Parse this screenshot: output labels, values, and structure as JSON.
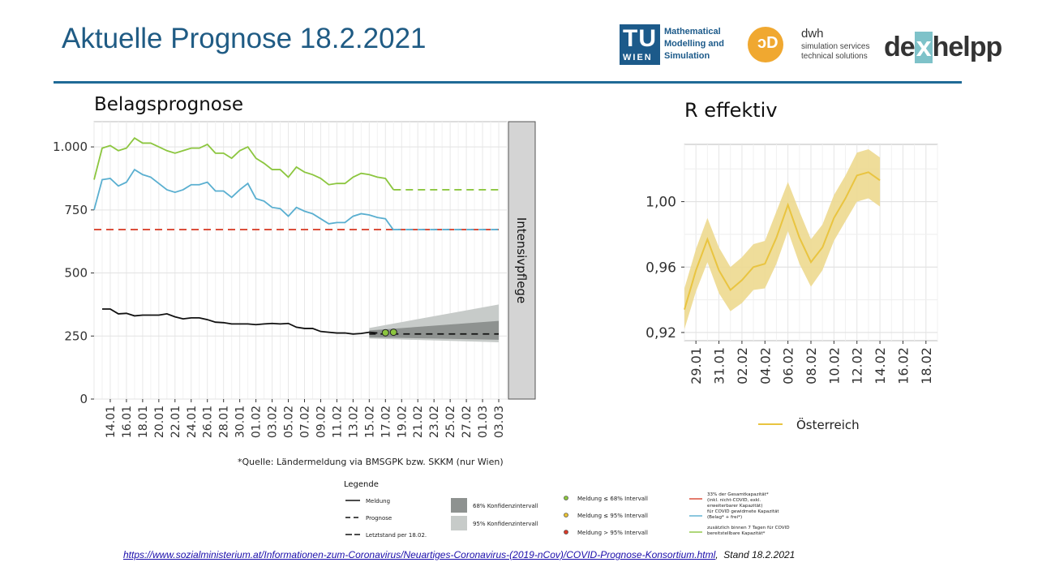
{
  "slide": {
    "title": "Aktuelle Prognose 18.2.2021",
    "source_url": "https://www.sozialministerium.at/Informationen-zum-Coronavirus/Neuartiges-Coronavirus-(2019-nCov)/COVID-Prognose-Konsortium.html",
    "source_stand": "Stand 18.2.2021"
  },
  "logos": {
    "tu_mark": "TU",
    "tu_wien": "WIEN",
    "tu_line1": "Mathematical",
    "tu_line2": "Modelling and",
    "tu_line3": "Simulation",
    "dwh_name": "dwh",
    "dwh_line1": "simulation services",
    "dwh_line2": "technical solutions",
    "dexhelpp_a": "de",
    "dexhelpp_x": "x",
    "dexhelpp_b": "helpp"
  },
  "colors": {
    "green": "#8cc63f",
    "blue": "#5aafd0",
    "red": "#d9432f",
    "black": "#111111",
    "gold": "#e9c440",
    "gold_band": "#edd98f",
    "band68": "#8e9290",
    "band95": "#c7cbc9",
    "facet": "#d4d4d4"
  },
  "chart_data": [
    {
      "type": "line",
      "title": "Belagsprognose",
      "facet_label": "Intensivpflege",
      "caption": "*Quelle: Ländermeldung via BMSGPK bzw. SKKM (nur Wien)",
      "x_start": "2021-01-12",
      "x_end": "2021-03-04",
      "x_tick_labels": [
        "14.01",
        "16.01",
        "18.01",
        "20.01",
        "22.01",
        "24.01",
        "26.01",
        "28.01",
        "30.01",
        "01.02",
        "03.02",
        "05.02",
        "07.02",
        "09.02",
        "11.02",
        "13.02",
        "15.02",
        "17.02",
        "19.02",
        "21.02",
        "23.02",
        "25.02",
        "27.02",
        "01.03",
        "03.03"
      ],
      "ylim": [
        0,
        1100
      ],
      "y_ticks": [
        0,
        250,
        500,
        750,
        1000
      ],
      "y_tick_labels": [
        "0",
        "250",
        "500",
        "750",
        "1.000"
      ],
      "series": [
        {
          "key": "green",
          "color": "#8cc63f",
          "start": "2021-01-12",
          "values": [
            870,
            995,
            1005,
            985,
            995,
            1035,
            1015,
            1015,
            1000,
            985,
            975,
            985,
            995,
            995,
            1010,
            975,
            975,
            955,
            985,
            1000,
            955,
            935,
            910,
            910,
            880,
            920,
            900,
            890,
            875,
            850,
            855,
            855,
            880,
            895,
            890,
            880,
            875,
            830
          ]
        },
        {
          "key": "blue",
          "color": "#5aafd0",
          "start": "2021-01-12",
          "values": [
            750,
            870,
            875,
            845,
            860,
            910,
            890,
            880,
            855,
            830,
            820,
            830,
            850,
            850,
            860,
            825,
            825,
            800,
            830,
            855,
            795,
            785,
            760,
            755,
            725,
            760,
            745,
            735,
            715,
            695,
            700,
            700,
            725,
            735,
            730,
            720,
            715,
            670
          ]
        },
        {
          "key": "black",
          "color": "#111111",
          "start": "2021-01-13",
          "values": [
            357,
            357,
            338,
            340,
            330,
            333,
            333,
            333,
            338,
            326,
            318,
            322,
            322,
            315,
            305,
            303,
            298,
            298,
            298,
            295,
            298,
            300,
            298,
            300,
            285,
            280,
            280,
            268,
            265,
            262,
            262,
            258,
            260,
            265,
            262
          ]
        }
      ],
      "reference_lines": [
        {
          "key": "green_dashed",
          "color": "#8cc63f",
          "from": "2021-02-18",
          "to": "2021-03-03",
          "value": 830
        },
        {
          "key": "red_dashed",
          "color": "#d9432f",
          "from": "2021-01-12",
          "to": "2021-03-03",
          "value": 672
        },
        {
          "key": "blue_dashed",
          "color": "#5aafd0",
          "from": "2021-02-18",
          "to": "2021-03-03",
          "value": 672
        }
      ],
      "forecast": {
        "from": "2021-02-15",
        "to": "2021-03-03",
        "median_value": 258,
        "last_report_value": 262,
        "ci68": {
          "lower_start": 245,
          "upper_start": 272,
          "lower_end": 235,
          "upper_end": 310
        },
        "ci95": {
          "lower_start": 240,
          "upper_start": 282,
          "lower_end": 225,
          "upper_end": 375
        },
        "points": [
          {
            "date": "2021-02-17",
            "value": 263
          },
          {
            "date": "2021-02-18",
            "value": 265
          }
        ]
      }
    },
    {
      "type": "line",
      "title": "R effektiv",
      "x_start": "2021-01-28",
      "x_end": "2021-02-19",
      "x_tick_labels": [
        "29.01",
        "31.01",
        "02.02",
        "04.02",
        "06.02",
        "08.02",
        "10.02",
        "12.02",
        "14.02",
        "16.02",
        "18.02"
      ],
      "ylim": [
        0.915,
        1.035
      ],
      "y_ticks": [
        0.92,
        0.96,
        1.0
      ],
      "y_tick_labels": [
        "0,92",
        "0,96",
        "1,00"
      ],
      "series": [
        {
          "name": "Österreich",
          "start": "2021-01-28",
          "values": [
            0.934,
            0.958,
            0.977,
            0.958,
            0.946,
            0.952,
            0.96,
            0.962,
            0.978,
            0.998,
            0.978,
            0.963,
            0.972,
            0.99,
            1.002,
            1.016,
            1.018,
            1.013
          ],
          "lower": [
            0.922,
            0.945,
            0.963,
            0.944,
            0.933,
            0.938,
            0.946,
            0.947,
            0.962,
            0.982,
            0.962,
            0.948,
            0.958,
            0.976,
            0.988,
            1.0,
            1.002,
            0.997
          ],
          "upper": [
            0.947,
            0.971,
            0.99,
            0.972,
            0.96,
            0.966,
            0.974,
            0.976,
            0.994,
            1.012,
            0.994,
            0.977,
            0.986,
            1.004,
            1.016,
            1.03,
            1.032,
            1.027
          ]
        }
      ],
      "legend_label": "Österreich"
    }
  ],
  "legend": {
    "title": "Legende",
    "lines": [
      "Meldung",
      "Prognose",
      "Letztstand per 18.02."
    ],
    "bands": [
      "68% Konfidenzintervall",
      "95% Konfidenzintervall"
    ],
    "points": [
      "Meldung ≤ 68% Intervall",
      "Meldung ≤ 95% Intervall",
      "Meldung > 95% Intervall"
    ],
    "capacities": [
      {
        "lines": [
          "33% der Gesamtkapazität*",
          "(inkl. nicht-COVID, exkl.",
          "erweiterbarer Kapazität)"
        ]
      },
      {
        "lines": [
          "für COVID gewidmete Kapazität",
          "(Belag* + frei*)"
        ]
      },
      {
        "lines": [
          "zusätzlich binnen 7 Tagen für COVID",
          "bereitstellbare Kapazität*"
        ]
      }
    ]
  }
}
